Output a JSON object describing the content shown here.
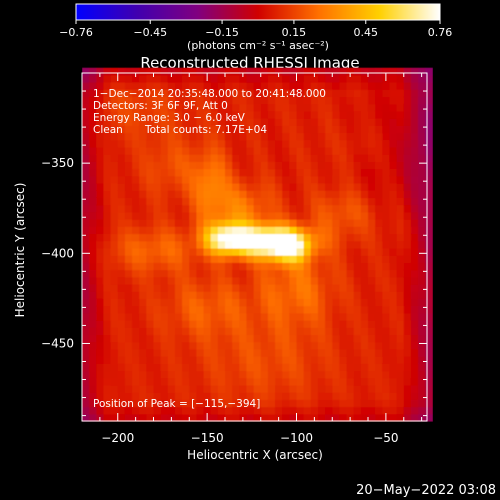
{
  "chart_data": {
    "type": "heatmap",
    "title": "Reconstructed RHESSI Image",
    "xlabel": "Heliocentric X (arcsec)",
    "ylabel": "Heliocentric Y (arcsec)",
    "xlim": [
      -220,
      -27
    ],
    "ylim": [
      -493,
      -300
    ],
    "x_ticks": [
      -200,
      -150,
      -100,
      -50
    ],
    "y_ticks": [
      -350,
      -400,
      -450
    ],
    "x_tick_labels": [
      "−200",
      "−150",
      "−100",
      "−50"
    ],
    "y_tick_labels": [
      "−350",
      "−400",
      "−450"
    ],
    "colorbar": {
      "label": "(photons cm⁻² s⁻¹ asec⁻²)",
      "range": [
        -0.76,
        0.76
      ],
      "ticks": [
        -0.76,
        -0.45,
        -0.15,
        0.15,
        0.45,
        0.76
      ],
      "tick_labels": [
        "−0.76",
        "−0.45",
        "−0.15",
        "0.15",
        "0.45",
        "0.76"
      ],
      "colormap": [
        "#0000ff",
        "#4000b0",
        "#800080",
        "#d00000",
        "#ff7000",
        "#ffd000",
        "#ffffff"
      ]
    },
    "annotations": {
      "time": "1−Dec−2014 20:35:48.000 to 20:41:48.000",
      "detectors": "Detectors: 3F 6F 9F, Att 0",
      "energy": "Energy Range: 3.0 − 6.0 keV",
      "method": "Clean",
      "counts": "Total counts: 7.17E+04",
      "peak": "Position of Peak = [−115,−394]"
    },
    "peak": [
      -115,
      -394
    ],
    "sources": [
      {
        "x": -118,
        "y": -393,
        "amp": 0.76,
        "sx": 16,
        "sy": 6
      },
      {
        "x": -140,
        "y": -391,
        "amp": 0.45,
        "sx": 8,
        "sy": 6
      },
      {
        "x": -104,
        "y": -397,
        "amp": 0.4,
        "sx": 8,
        "sy": 6
      },
      {
        "x": -148,
        "y": -362,
        "amp": 0.22,
        "sx": 7,
        "sy": 14
      },
      {
        "x": -130,
        "y": -375,
        "amp": 0.2,
        "sx": 12,
        "sy": 10
      },
      {
        "x": -100,
        "y": -420,
        "amp": 0.18,
        "sx": 15,
        "sy": 15
      },
      {
        "x": -180,
        "y": -398,
        "amp": 0.16,
        "sx": 18,
        "sy": 9
      },
      {
        "x": -75,
        "y": -378,
        "amp": 0.13,
        "sx": 12,
        "sy": 10
      },
      {
        "x": -150,
        "y": -430,
        "amp": 0.14,
        "sx": 18,
        "sy": 12
      },
      {
        "x": -170,
        "y": -352,
        "amp": 0.11,
        "sx": 12,
        "sy": 12
      },
      {
        "x": -118,
        "y": -460,
        "amp": 0.1,
        "sx": 26,
        "sy": 16
      },
      {
        "x": -190,
        "y": -320,
        "amp": 0.08,
        "sx": 20,
        "sy": 12
      },
      {
        "x": -60,
        "y": -340,
        "amp": 0.06,
        "sx": 15,
        "sy": 10
      }
    ],
    "background": 0.07,
    "grid": false
  },
  "footer": {
    "date": "20−May−2022 03:08"
  }
}
